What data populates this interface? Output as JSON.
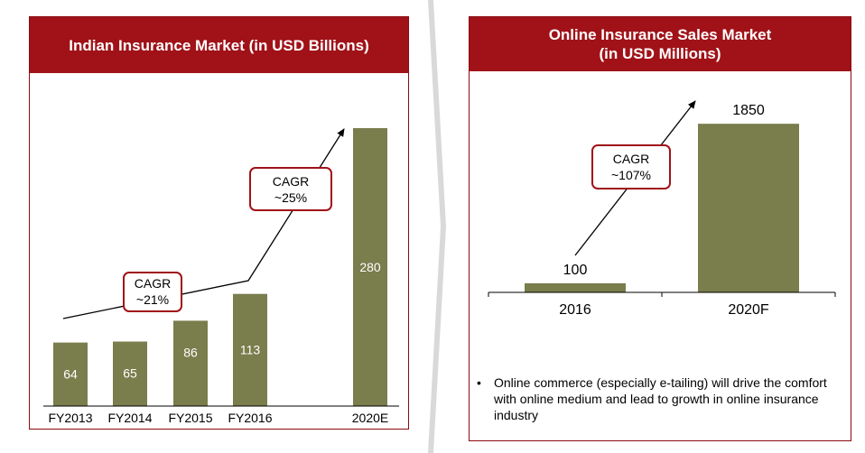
{
  "colors": {
    "header_bg": "#a01218",
    "bar_fill": "#7a7d4c",
    "callout_border": "#a01218"
  },
  "left_panel": {
    "title": "Indian Insurance Market (in USD Billions)",
    "callouts": [
      {
        "line1": "CAGR",
        "line2": "~21%"
      },
      {
        "line1": "CAGR",
        "line2": "~25%"
      }
    ]
  },
  "right_panel": {
    "title_line1": "Online Insurance Sales Market",
    "title_line2": "(in USD Millions)",
    "callout": {
      "line1": "CAGR",
      "line2": "~107%"
    },
    "bullet_symbol": "•",
    "bullet_text": "Online commerce (especially e-tailing) will drive the comfort with online medium and lead to growth in online insurance industry"
  },
  "chart_data": [
    {
      "type": "bar",
      "title": "Indian Insurance Market (in USD Billions)",
      "categories": [
        "FY2013",
        "FY2014",
        "FY2015",
        "FY2016",
        "2020E"
      ],
      "values": [
        64,
        65,
        86,
        113,
        280
      ],
      "data_labels": [
        "64",
        "65",
        "86",
        "113",
        "280"
      ],
      "annotations": [
        "CAGR ~21%",
        "CAGR ~25%"
      ]
    },
    {
      "type": "bar",
      "title": "Online Insurance Sales Market (in USD Millions)",
      "categories": [
        "2016",
        "2020F"
      ],
      "values": [
        100,
        1850
      ],
      "data_labels": [
        "100",
        "1850"
      ],
      "annotations": [
        "CAGR ~107%"
      ]
    }
  ]
}
